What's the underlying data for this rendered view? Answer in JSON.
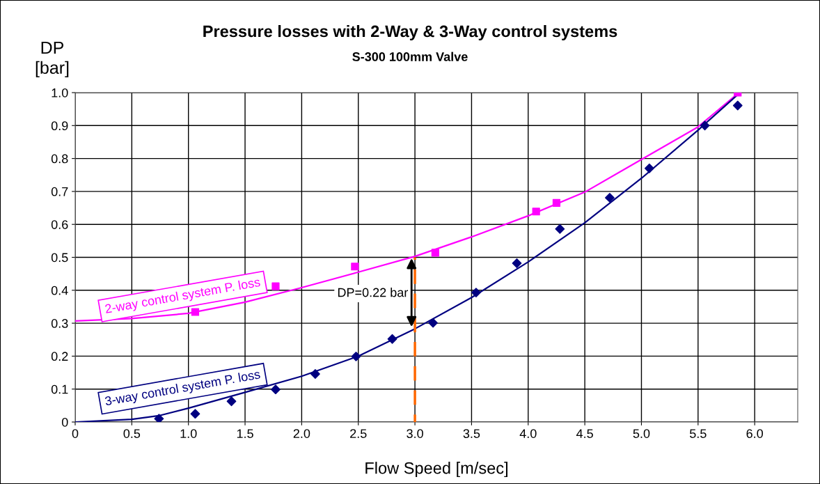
{
  "chart_data": {
    "type": "scatter",
    "title": "Pressure losses with 2-Way & 3-Way control systems",
    "subtitle": "S-300 100mm Valve",
    "xlabel": "Flow Speed [m/sec]",
    "ylabel": "DP\n[bar]",
    "xlim": [
      0,
      6.38
    ],
    "ylim": [
      0,
      1.0
    ],
    "xticks": [
      {
        "value": 0,
        "label": "0"
      },
      0.5,
      {
        "value": 1.0,
        "label": "1.0"
      },
      1.5,
      {
        "value": 2.0,
        "label": "2.0"
      },
      2.5,
      {
        "value": 3.0,
        "label": "3.0"
      },
      3.5,
      {
        "value": 4.0,
        "label": "4.0"
      },
      4.5,
      {
        "value": 5.0,
        "label": "5.0"
      },
      5.5,
      {
        "value": 6.0,
        "label": "6.0"
      }
    ],
    "yticks": [
      {
        "value": 0,
        "label": "0"
      },
      0.1,
      0.2,
      0.3,
      0.4,
      0.5,
      0.6,
      0.7,
      0.8,
      0.9,
      {
        "value": 1.0,
        "label": "1.0"
      }
    ],
    "grid": true,
    "legend": false,
    "series": [
      {
        "marker": "square",
        "color": "#ff00ff",
        "x": [
          1.06,
          1.77,
          2.47,
          3.18,
          4.07,
          4.25,
          5.85
        ],
        "values": [
          0.334,
          0.412,
          0.472,
          0.514,
          0.639,
          0.665,
          1.0
        ]
      },
      {
        "type": "line",
        "name": "2-way control system P. loss",
        "color": "#ff00ff",
        "marker": "none",
        "x": [
          0,
          0.5,
          1.0,
          1.5,
          2.0,
          2.5,
          3.0,
          3.5,
          4.0,
          4.5,
          5.0,
          5.5,
          5.85
        ],
        "values": [
          0.307,
          0.314,
          0.33,
          0.364,
          0.408,
          0.455,
          0.503,
          0.562,
          0.626,
          0.698,
          0.797,
          0.896,
          0.997
        ]
      },
      {
        "marker": "diamond",
        "color": "#000080",
        "x": [
          0.74,
          1.06,
          1.38,
          1.77,
          2.12,
          2.48,
          2.8,
          3.16,
          3.54,
          3.9,
          4.28,
          4.72,
          5.07,
          5.56,
          5.85
        ],
        "values": [
          0.01,
          0.025,
          0.063,
          0.099,
          0.146,
          0.199,
          0.252,
          0.301,
          0.393,
          0.482,
          0.586,
          0.681,
          0.77,
          0.9,
          0.961
        ]
      },
      {
        "type": "line",
        "name": "3-way control system P. loss",
        "color": "#000080",
        "marker": "none",
        "x": [
          0,
          0.5,
          0.75,
          1.0,
          1.5,
          2.0,
          2.5,
          3.0,
          3.5,
          4.0,
          4.5,
          5.0,
          5.5,
          5.85
        ],
        "values": [
          0,
          0.008,
          0.02,
          0.042,
          0.09,
          0.139,
          0.2,
          0.283,
          0.378,
          0.486,
          0.605,
          0.74,
          0.886,
          0.994
        ]
      },
      {
        "type": "line",
        "color": "#ff6600",
        "marker": "none",
        "line_style": "dashed",
        "x": [
          3.0,
          3.0
        ],
        "values": [
          0,
          0.5
        ]
      }
    ],
    "annotations": [
      {
        "text": "DP=0.22 bar",
        "x": 3.0,
        "y": 0.39
      }
    ]
  }
}
